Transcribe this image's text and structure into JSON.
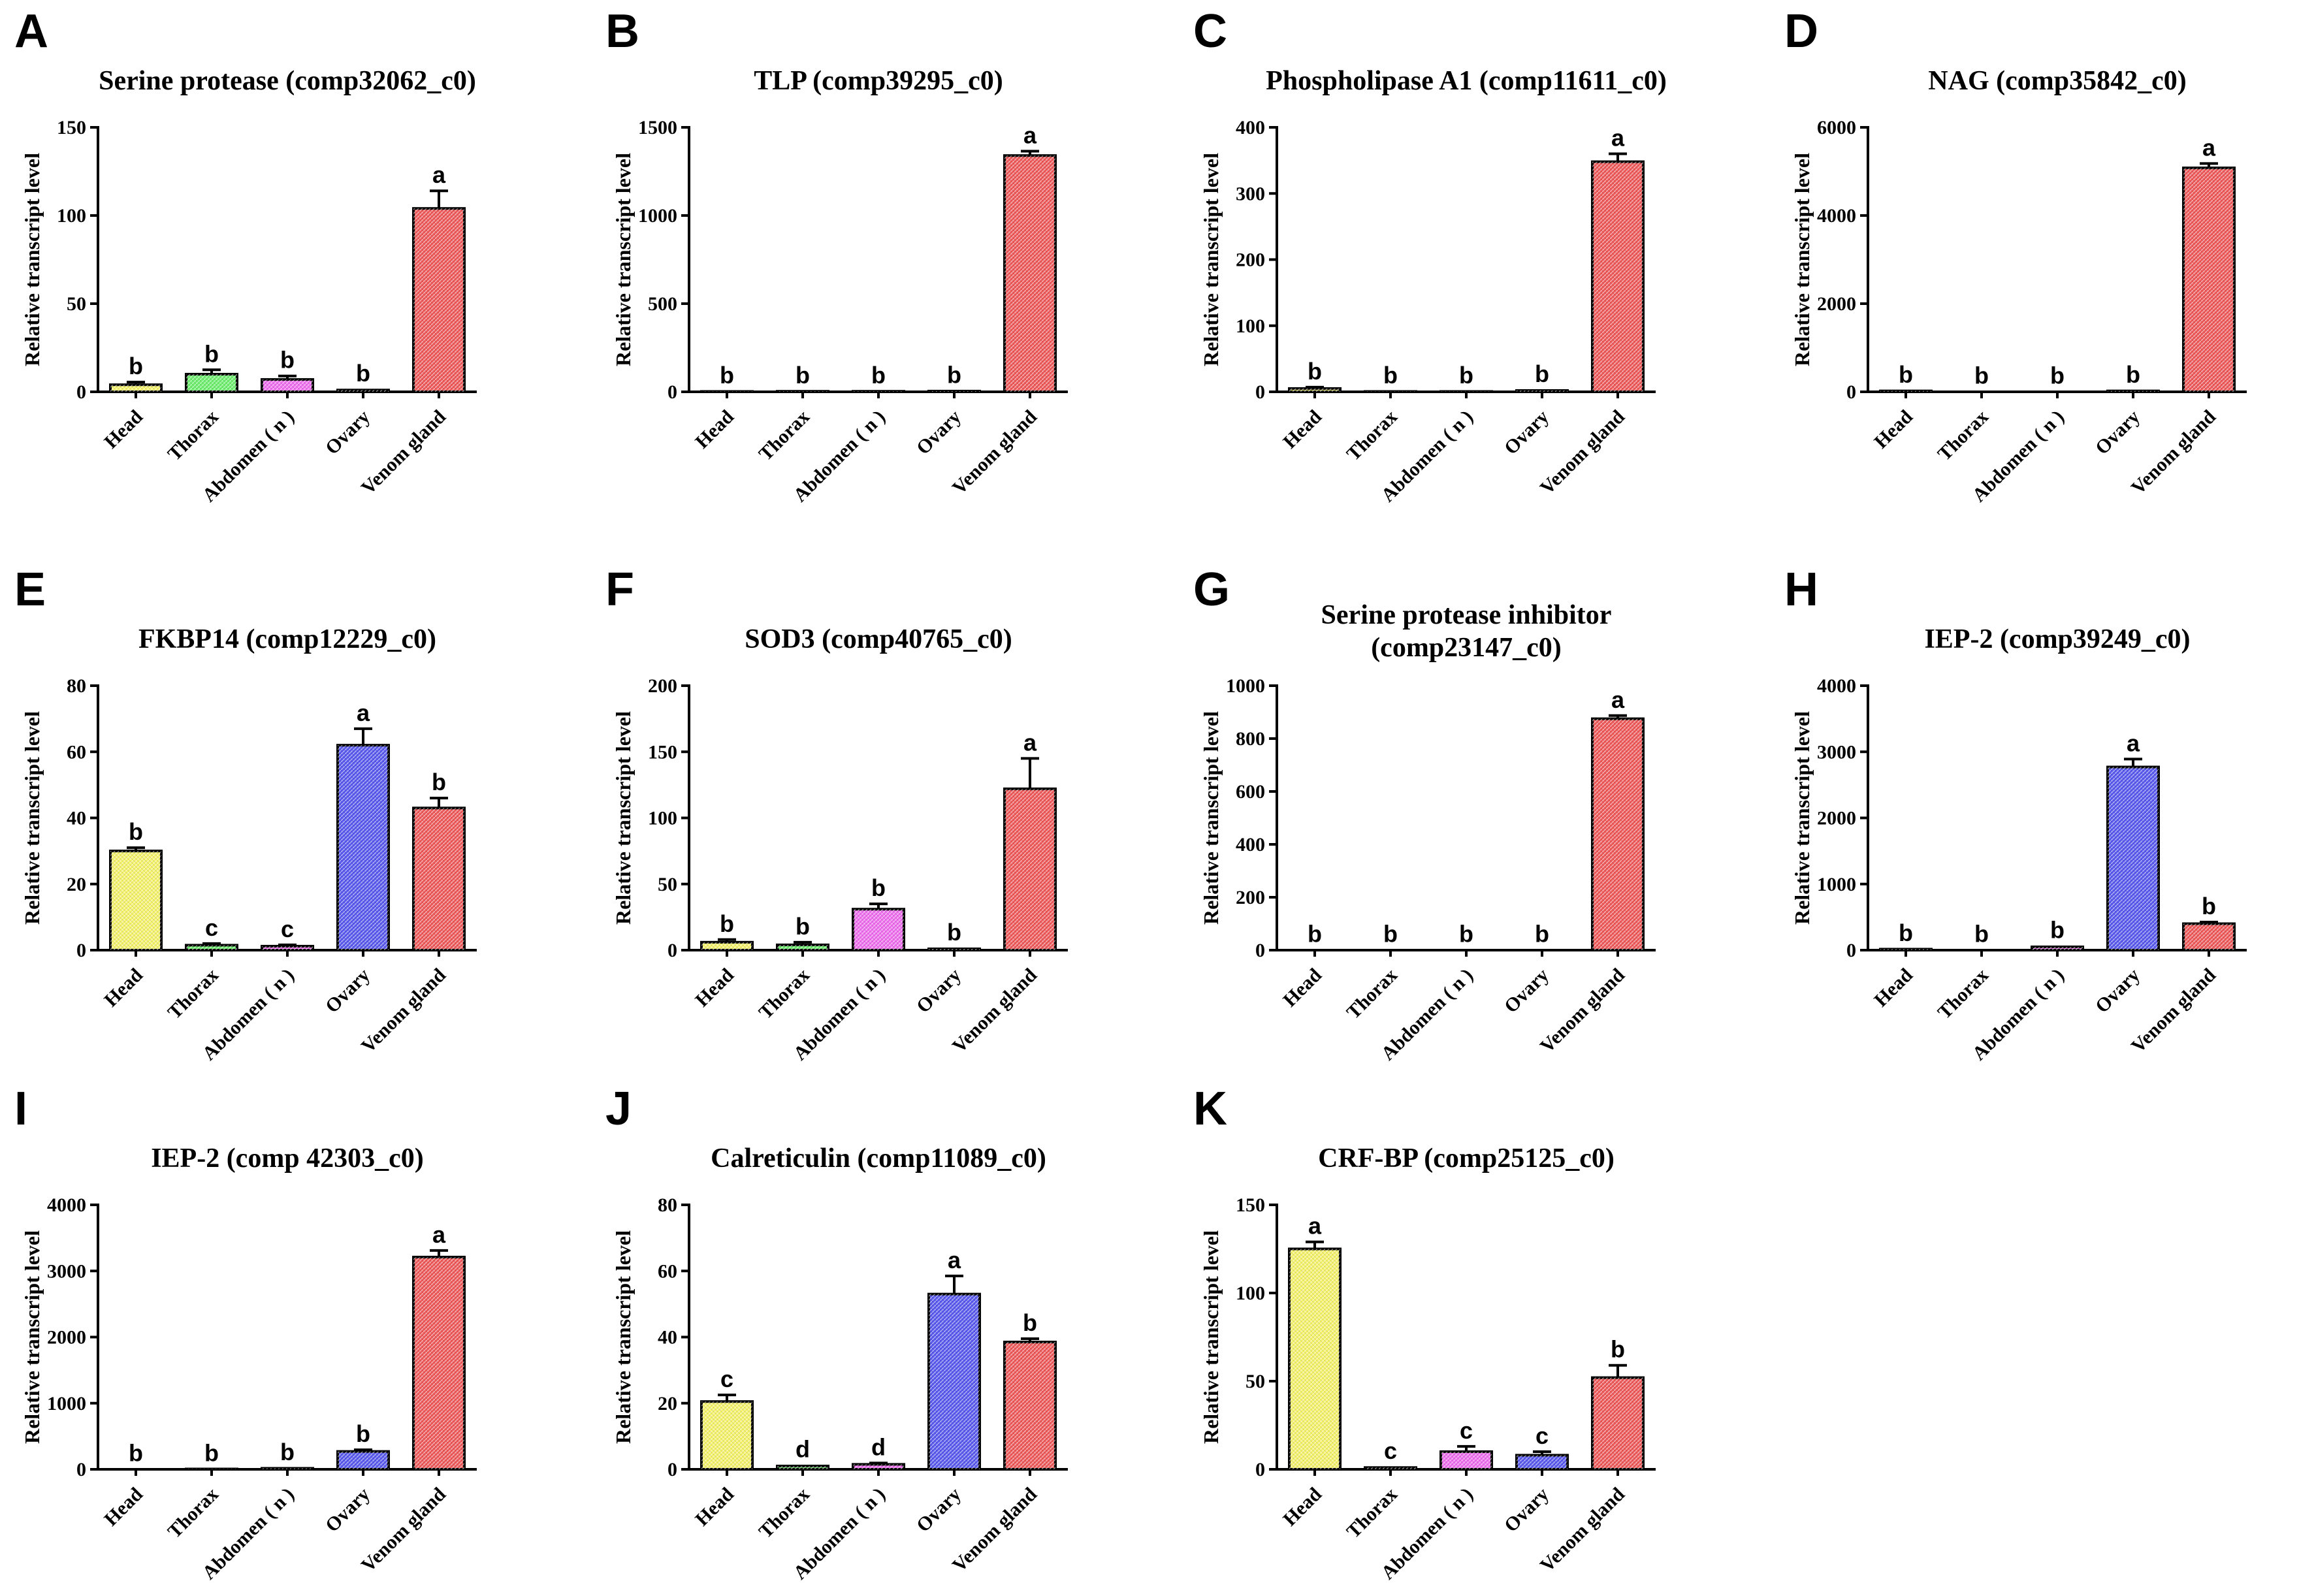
{
  "categories": [
    "Head",
    "Thorax",
    "Abdomen ( n )",
    "Ovary",
    "Venom gland"
  ],
  "bar_colors": [
    "#f6f36c",
    "#6ef06e",
    "#f06ef0",
    "#5a5af0",
    "#f05a5a"
  ],
  "chart_data": [
    {
      "type": "bar",
      "letter": "A",
      "title": [
        "Serine protease  (comp32062_c0)"
      ],
      "ylabel": "Relative transcript level",
      "ylim": [
        0,
        150
      ],
      "yticks": [
        0,
        50,
        100,
        150
      ],
      "values": [
        4,
        10,
        7,
        1,
        104
      ],
      "errors": [
        1.5,
        2.5,
        2,
        0.5,
        10
      ],
      "letters": [
        "b",
        "b",
        "b",
        "b",
        "a"
      ]
    },
    {
      "type": "bar",
      "letter": "B",
      "title": [
        "TLP (comp39295_c0)"
      ],
      "ylabel": "Relative transcript level",
      "ylim": [
        0,
        1500
      ],
      "yticks": [
        0,
        500,
        1000,
        1500
      ],
      "values": [
        2,
        3,
        3,
        4,
        1340
      ],
      "errors": [
        1,
        1,
        1,
        1,
        25
      ],
      "letters": [
        "b",
        "b",
        "b",
        "b",
        "a"
      ]
    },
    {
      "type": "bar",
      "letter": "C",
      "title": [
        "Phospholipase A1 (comp11611_c0)"
      ],
      "ylabel": "Relative transcript level",
      "ylim": [
        0,
        400
      ],
      "yticks": [
        0,
        100,
        200,
        300,
        400
      ],
      "values": [
        5,
        0.5,
        0.5,
        2,
        348
      ],
      "errors": [
        2,
        0.3,
        0.3,
        1,
        12
      ],
      "letters": [
        "b",
        "b",
        "b",
        "b",
        "a"
      ]
    },
    {
      "type": "bar",
      "letter": "D",
      "title": [
        "NAG (comp35842_c0)"
      ],
      "ylabel": "Relative transcript level",
      "ylim": [
        0,
        6000
      ],
      "yticks": [
        0,
        2000,
        4000,
        6000
      ],
      "values": [
        20,
        5,
        5,
        20,
        5080
      ],
      "errors": [
        8,
        3,
        3,
        8,
        100
      ],
      "letters": [
        "b",
        "b",
        "b",
        "b",
        "a"
      ]
    },
    {
      "type": "bar",
      "letter": "E",
      "title": [
        "FKBP14 (comp12229_c0)"
      ],
      "ylabel": "Relative transcript level",
      "ylim": [
        0,
        80
      ],
      "yticks": [
        0,
        20,
        40,
        60,
        80
      ],
      "values": [
        30,
        1.5,
        1.2,
        62,
        43
      ],
      "errors": [
        1,
        0.5,
        0.4,
        5,
        3
      ],
      "letters": [
        "b",
        "c",
        "c",
        "a",
        "b"
      ]
    },
    {
      "type": "bar",
      "letter": "F",
      "title": [
        "SOD3 (comp40765_c0)"
      ],
      "ylabel": "Relative transcript level",
      "ylim": [
        0,
        200
      ],
      "yticks": [
        0,
        50,
        100,
        150,
        200
      ],
      "values": [
        6,
        4,
        31,
        1,
        122
      ],
      "errors": [
        2,
        2,
        4,
        0.5,
        23
      ],
      "letters": [
        "b",
        "b",
        "b",
        "b",
        "a"
      ]
    },
    {
      "type": "bar",
      "letter": "G",
      "title": [
        "Serine protease inhibitor",
        "(comp23147_c0)"
      ],
      "ylabel": "Relative transcript level",
      "ylim": [
        0,
        1000
      ],
      "yticks": [
        0,
        200,
        400,
        600,
        800,
        1000
      ],
      "values": [
        1,
        1,
        1,
        1,
        875
      ],
      "errors": [
        0.5,
        0.5,
        0.5,
        0.5,
        12
      ],
      "letters": [
        "b",
        "b",
        "b",
        "b",
        "a"
      ]
    },
    {
      "type": "bar",
      "letter": "H",
      "title": [
        "IEP-2 (comp39249_c0)"
      ],
      "ylabel": "Relative transcript level",
      "ylim": [
        0,
        4000
      ],
      "yticks": [
        0,
        1000,
        2000,
        3000,
        4000
      ],
      "values": [
        15,
        3,
        50,
        2770,
        400
      ],
      "errors": [
        5,
        2,
        15,
        120,
        25
      ],
      "letters": [
        "b",
        "b",
        "b",
        "a",
        "b"
      ]
    },
    {
      "type": "bar",
      "letter": "I",
      "title": [
        "IEP-2 (comp 42303_c0)"
      ],
      "ylabel": "Relative transcript level",
      "ylim": [
        0,
        4000
      ],
      "yticks": [
        0,
        1000,
        2000,
        3000,
        4000
      ],
      "values": [
        2,
        5,
        15,
        270,
        3210
      ],
      "errors": [
        1,
        2,
        5,
        25,
        100
      ],
      "letters": [
        "b",
        "b",
        "b",
        "b",
        "a"
      ]
    },
    {
      "type": "bar",
      "letter": "J",
      "title": [
        "Calreticulin (comp11089_c0)"
      ],
      "ylabel": "Relative transcript level",
      "ylim": [
        0,
        80
      ],
      "yticks": [
        0,
        20,
        40,
        60,
        80
      ],
      "values": [
        20.5,
        1,
        1.5,
        53,
        38.5
      ],
      "errors": [
        2,
        0.3,
        0.4,
        5.5,
        1
      ],
      "letters": [
        "c",
        "d",
        "d",
        "a",
        "b"
      ]
    },
    {
      "type": "bar",
      "letter": "K",
      "title": [
        "CRF-BP (comp25125_c0)"
      ],
      "ylabel": "Relative transcript level",
      "ylim": [
        0,
        150
      ],
      "yticks": [
        0,
        50,
        100,
        150
      ],
      "values": [
        125,
        1,
        10,
        8,
        52
      ],
      "errors": [
        4,
        0.5,
        3,
        2,
        7
      ],
      "letters": [
        "a",
        "c",
        "c",
        "c",
        "b"
      ]
    }
  ]
}
